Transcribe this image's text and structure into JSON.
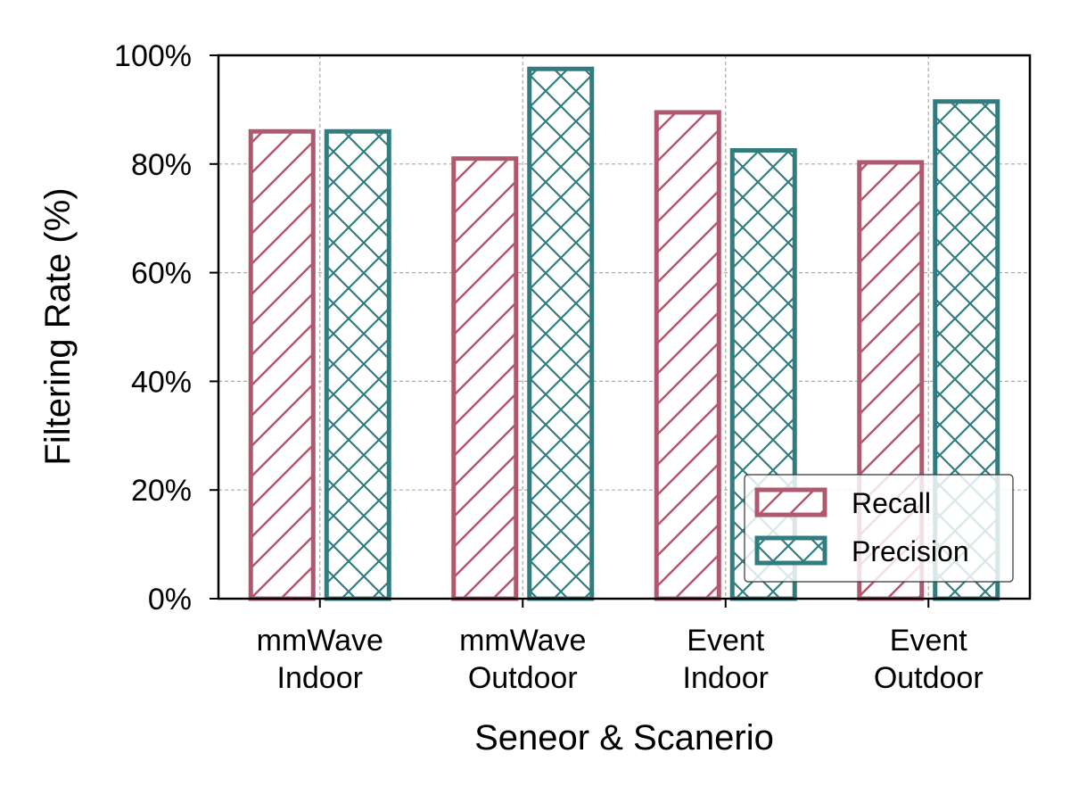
{
  "chart_data": {
    "type": "bar",
    "title": "",
    "xlabel": "Seneor & Scanerio",
    "ylabel": "Filtering Rate (%)",
    "ylim": [
      0,
      100
    ],
    "yticks": [
      0,
      20,
      40,
      60,
      80,
      100
    ],
    "ytick_labels": [
      "0%",
      "20%",
      "40%",
      "60%",
      "80%",
      "100%"
    ],
    "categories": [
      [
        "mmWave",
        "Indoor"
      ],
      [
        "mmWave",
        "Outdoor"
      ],
      [
        "Event",
        "Indoor"
      ],
      [
        "Event",
        "Outdoor"
      ]
    ],
    "series": [
      {
        "name": "Recall",
        "values": [
          86,
          81,
          89.5,
          80.3
        ],
        "color": "#b05870",
        "hatch": "diagonal"
      },
      {
        "name": "Precision",
        "values": [
          86,
          97.5,
          82.5,
          91.5
        ],
        "color": "#317c7e",
        "hatch": "cross"
      }
    ],
    "grid": true,
    "legend_position": "bottom-right"
  }
}
